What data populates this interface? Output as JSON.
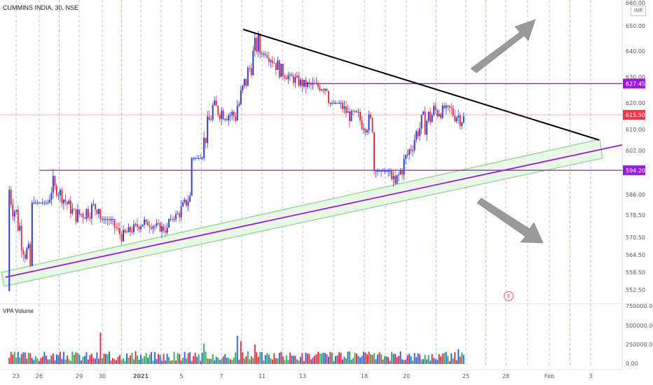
{
  "symbol_title": "CUMMINS INDIA, 30, NSE",
  "currency_label": "INR",
  "volume_title": "VPA Volume",
  "event_marker": "E",
  "colors": {
    "up": "#2f3bd6",
    "down": "#e0334a",
    "vol_up": "#3dae5a",
    "vol_down": "#e0334a",
    "vol_blue": "#2f6fd6",
    "purple": "#9b19d9",
    "green_channel": "#7bc87b",
    "current_price": "#f23645",
    "trend_black": "#000000",
    "arrow_gray": "#9a9a9a"
  },
  "chart_data": [
    {
      "type": "candlestick",
      "title": "CUMMINS INDIA, 30, NSE",
      "y_axis_ticks": [
        "660.00",
        "650.00",
        "640.00",
        "630.00",
        "620.00",
        "610.00",
        "602.00",
        "594.00",
        "586.00",
        "578.50",
        "570.50",
        "564.50",
        "558.50",
        "552.50"
      ],
      "x_axis_ticks": [
        "23",
        "26",
        "29",
        "30",
        "2021",
        "5",
        "7",
        "11",
        "13",
        "18",
        "20",
        "25",
        "28",
        "Feb",
        "3"
      ],
      "ylim": [
        548,
        662
      ],
      "price_labels": [
        {
          "value": 627.45,
          "text": "627.45",
          "color": "#9b19d9"
        },
        {
          "value": 615.5,
          "text": "615.50",
          "color": "#f23645"
        },
        {
          "value": 594.2,
          "text": "594.20",
          "color": "#9b19d9"
        }
      ],
      "horizontal_levels": [
        {
          "value": 627.45,
          "from_session": 13,
          "name": "resistance"
        },
        {
          "value": 594.2,
          "from_session": 1,
          "name": "support"
        }
      ],
      "sessions": 20,
      "session_close_path": [
        560,
        590,
        578,
        582,
        571,
        576,
        573,
        585,
        618,
        615,
        645,
        632,
        627,
        626,
        615,
        612,
        589,
        610,
        619,
        614
      ],
      "session_high_path": [
        592,
        596,
        590,
        589,
        578,
        580,
        577,
        590,
        624,
        628,
        648,
        640,
        632,
        630,
        621,
        618,
        595,
        612,
        626,
        620
      ],
      "session_low_path": [
        557,
        582,
        575,
        570,
        566,
        570,
        568,
        576,
        598,
        608,
        618,
        622,
        620,
        618,
        608,
        595,
        585,
        590,
        598,
        600
      ]
    },
    {
      "type": "bar",
      "title": "VPA Volume",
      "y_axis_ticks": [
        "750000.00",
        "500000.00",
        "250000.00",
        "0.00"
      ],
      "ylim": [
        0,
        750000
      ],
      "typical_volume": 140000,
      "spike_volumes": [
        {
          "session": 4,
          "value": 520000
        },
        {
          "session": 7,
          "value": 560000
        },
        {
          "session": 8,
          "value": 480000
        },
        {
          "session": 10,
          "value": 450000
        },
        {
          "session": 19,
          "value": 350000
        }
      ]
    }
  ]
}
